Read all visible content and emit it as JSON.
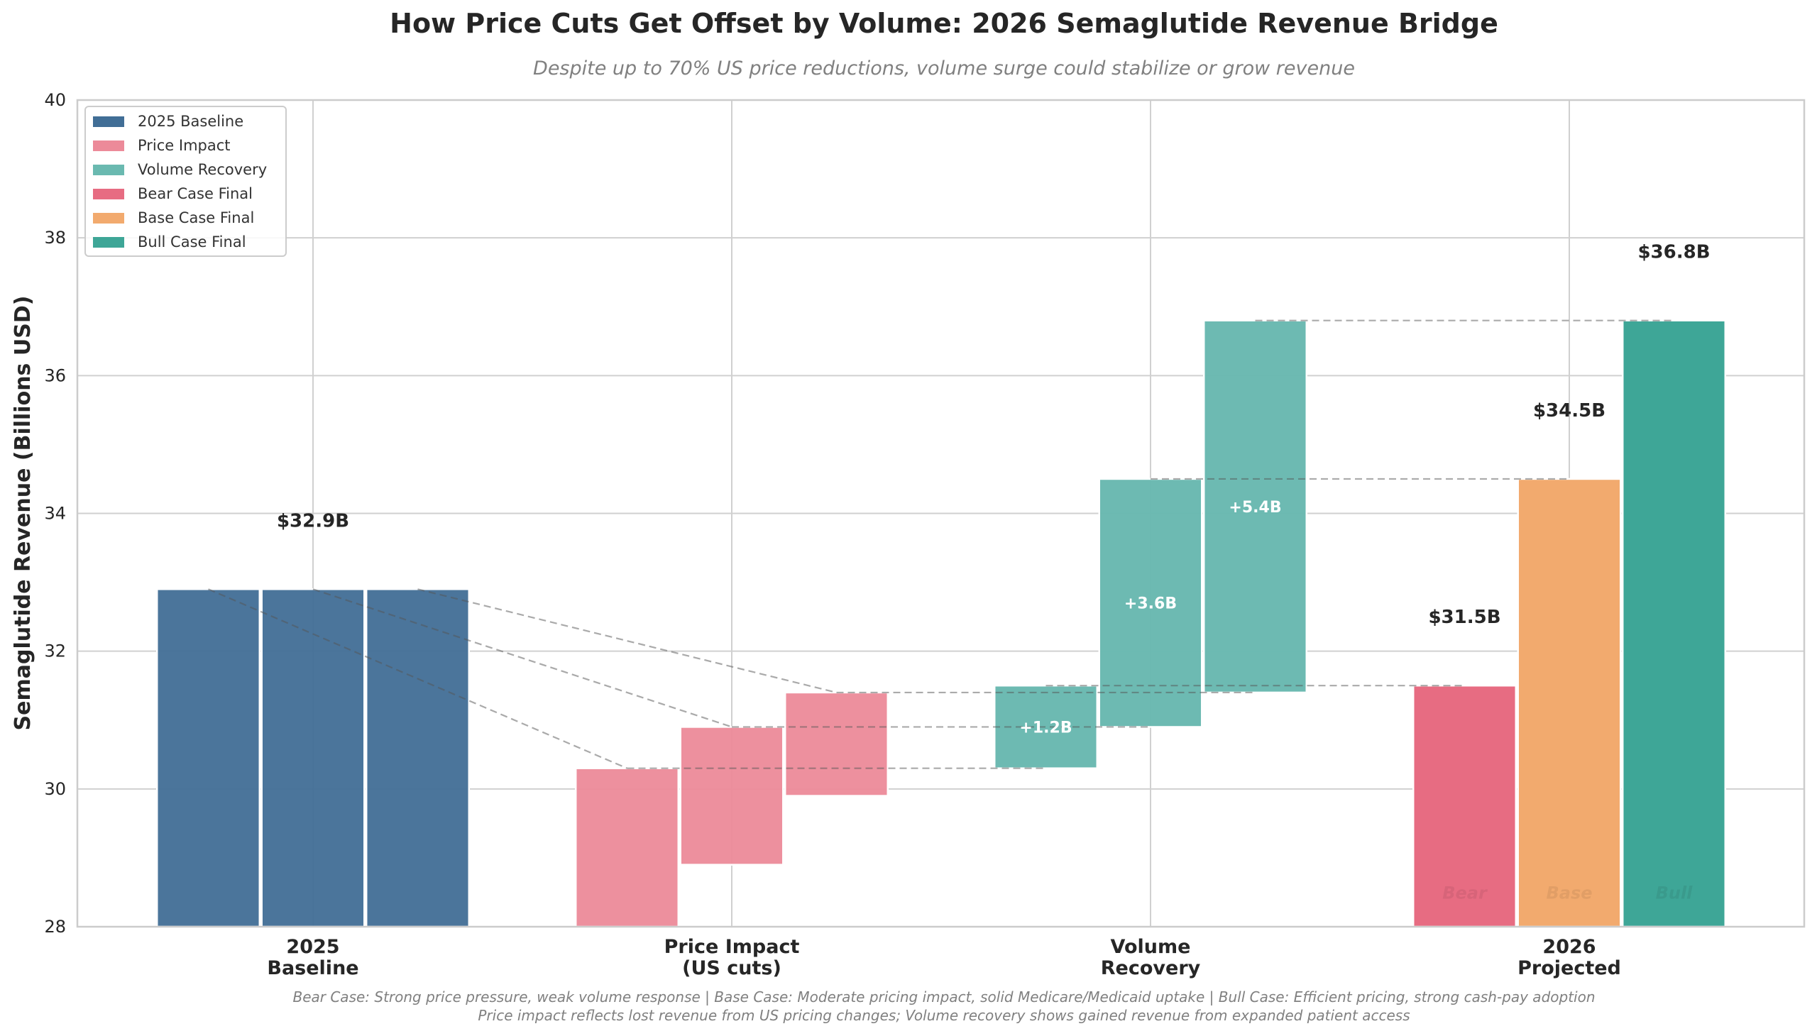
{
  "chart_data": {
    "type": "bar",
    "subtype": "waterfall",
    "title": "How Price Cuts Get Offset by Volume: 2026 Semaglutide Revenue Bridge",
    "subtitle": "Despite up to 70% US price reductions, volume surge could stabilize or grow revenue",
    "xlabel": "",
    "ylabel": "Semaglutide Revenue (Billions USD)",
    "ylim": [
      28,
      40
    ],
    "yticks": [
      28,
      30,
      32,
      34,
      36,
      38,
      40
    ],
    "grid": true,
    "categories": [
      "2025\nBaseline",
      "Price Impact\n(US cuts)",
      "Volume\nRecovery",
      "2026\nProjected"
    ],
    "category_lines": [
      [
        "2025",
        "Baseline"
      ],
      [
        "Price Impact",
        "(US cuts)"
      ],
      [
        "Volume",
        "Recovery"
      ],
      [
        "2026",
        "Projected"
      ]
    ],
    "scenarios": [
      {
        "name": "Bear",
        "baseline": 32.9,
        "price_impact": -2.6,
        "after_price": 30.3,
        "volume_recovery": 1.2,
        "volume_label": "+1.2B",
        "final": 31.5,
        "final_label": "$31.5B",
        "final_color": "#E76C82",
        "case_label": "Bear"
      },
      {
        "name": "Base",
        "baseline": 32.9,
        "price_impact": -2.0,
        "after_price": 30.9,
        "volume_recovery": 3.6,
        "volume_label": "+3.6B",
        "final": 34.5,
        "final_label": "$34.5B",
        "final_color": "#F2AA6E",
        "case_label": "Base"
      },
      {
        "name": "Bull",
        "baseline": 32.9,
        "price_impact": -1.5,
        "after_price": 31.4,
        "volume_recovery": 5.4,
        "volume_label": "+5.4B",
        "final": 36.8,
        "final_label": "$36.8B",
        "final_color": "#3EA697",
        "case_label": "Bull"
      }
    ],
    "baseline_label": "$32.9B",
    "colors": {
      "baseline": "#416E96",
      "price_impact": "#EC8A99",
      "volume_recovery": "#6AB9B0",
      "bear": "#E76C82",
      "base": "#F2AA6E",
      "bull": "#3EA697"
    },
    "legend": {
      "placement": "top-left",
      "entries": [
        {
          "label": "2025 Baseline",
          "color": "#416E96"
        },
        {
          "label": "Price Impact",
          "color": "#EC8A99"
        },
        {
          "label": "Volume Recovery",
          "color": "#6AB9B0"
        },
        {
          "label": "Bear Case Final",
          "color": "#E76C82"
        },
        {
          "label": "Base Case Final",
          "color": "#F2AA6E"
        },
        {
          "label": "Bull Case Final",
          "color": "#3EA697"
        }
      ]
    },
    "footnotes": [
      "Bear Case: Strong price pressure, weak volume response | Base Case: Moderate pricing impact, solid Medicare/Medicaid uptake | Bull Case: Efficient pricing, strong cash-pay adoption",
      "Price impact reflects lost revenue from US pricing changes; Volume recovery shows gained revenue from expanded patient access"
    ]
  }
}
